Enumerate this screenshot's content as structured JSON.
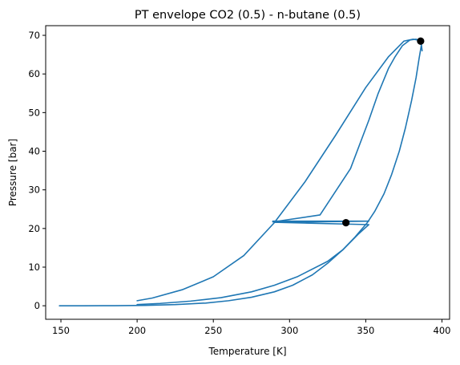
{
  "chart_data": {
    "type": "line",
    "title": "PT envelope CO2 (0.5) - n-butane (0.5)",
    "xlabel": "Temperature [K]",
    "ylabel": "Pressure [bar]",
    "xlim": [
      140,
      405
    ],
    "ylim": [
      -3.5,
      72.5
    ],
    "xticks": [
      150,
      200,
      250,
      300,
      350,
      400
    ],
    "yticks": [
      0,
      10,
      20,
      30,
      40,
      50,
      60,
      70
    ],
    "grid": false,
    "legend": "none",
    "colors": {
      "line": "#1f77b4",
      "marker": "#000000"
    },
    "series": [
      {
        "x": [
          149,
          165,
          185,
          205,
          225,
          245,
          260,
          275,
          290,
          302,
          315,
          325,
          335,
          343,
          351,
          356,
          362,
          367,
          372,
          376,
          380,
          383,
          385,
          386.5,
          387,
          386,
          383,
          379,
          374,
          369,
          365,
          358,
          352,
          340,
          320,
          289
        ],
        "y": [
          0,
          0,
          0.02,
          0.1,
          0.3,
          0.7,
          1.3,
          2.2,
          3.6,
          5.3,
          8,
          11,
          14.5,
          17.8,
          21.5,
          24.5,
          29,
          34,
          40,
          46,
          53,
          59,
          64,
          67.5,
          66,
          68.5,
          69,
          68.8,
          67.3,
          64.3,
          61.5,
          54.8,
          48,
          35.5,
          23.5,
          21.7
        ]
      },
      {
        "x": [
          200,
          210,
          230,
          250,
          270,
          290,
          310,
          330,
          350,
          365,
          375,
          381,
          384
        ],
        "y": [
          1.3,
          2,
          4.2,
          7.5,
          13,
          21.5,
          32,
          44,
          56.5,
          64.5,
          68.5,
          69,
          68.8
        ]
      },
      {
        "x": [
          289,
          352,
          290
        ],
        "y": [
          21.9,
          21.9,
          21.6
        ]
      },
      {
        "x": [
          290,
          352,
          345,
          335,
          325,
          305,
          290,
          275,
          255,
          235,
          215,
          200
        ],
        "y": [
          21.6,
          21,
          18.5,
          14.5,
          11.5,
          7.5,
          5.3,
          3.6,
          2.1,
          1.2,
          0.6,
          0.3
        ]
      }
    ],
    "points": [
      {
        "x": 386,
        "y": 68.5
      },
      {
        "x": 337,
        "y": 21.5
      }
    ]
  }
}
